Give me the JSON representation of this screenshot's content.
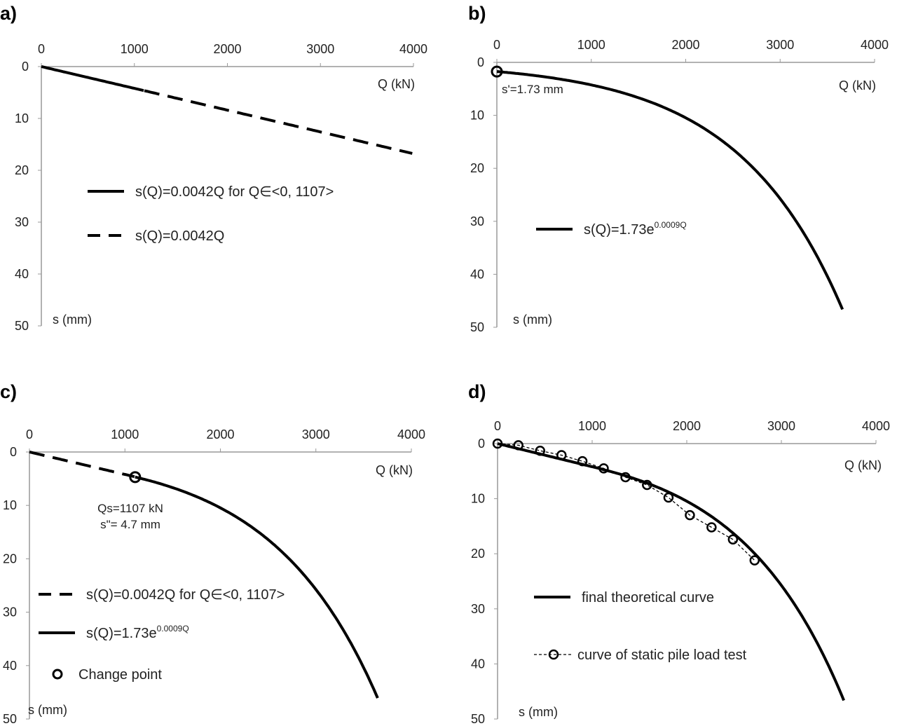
{
  "chart_data": [
    {
      "panel": "a)",
      "type": "line",
      "xlabel": "Q (kN)",
      "ylabel": "s (mm)",
      "xlim": [
        0,
        4000
      ],
      "ylim": [
        0,
        50
      ],
      "y_inverted": true,
      "x_axis_position": "top",
      "xticks": [
        "0",
        "1000",
        "2000",
        "3000",
        "4000"
      ],
      "yticks": [
        "0",
        "10",
        "20",
        "30",
        "40",
        "50"
      ],
      "grid": false,
      "series": [
        {
          "name": "s(Q)=0.0042Q for Q∈<0, 1107>",
          "style": "solid",
          "formula": {
            "kind": "linear",
            "k": 0.0042
          },
          "q_range": [
            0,
            1107
          ]
        },
        {
          "name": "s(Q)=0.0042Q",
          "style": "dashed",
          "formula": {
            "kind": "linear",
            "k": 0.0042
          },
          "q_range": [
            1107,
            4000
          ]
        }
      ]
    },
    {
      "panel": "b)",
      "type": "line",
      "xlabel": "Q (kN)",
      "ylabel": "s (mm)",
      "xlim": [
        0,
        4000
      ],
      "ylim": [
        0,
        50
      ],
      "y_inverted": true,
      "x_axis_position": "top",
      "xticks": [
        "0",
        "1000",
        "2000",
        "3000",
        "4000"
      ],
      "yticks": [
        "0",
        "10",
        "20",
        "30",
        "40",
        "50"
      ],
      "grid": false,
      "annotation": "s'=1.73 mm",
      "marker_point": {
        "x": 0,
        "y": 1.73
      },
      "series": [
        {
          "name": "s(Q)=1.73e",
          "name_sup": "0.0009Q",
          "style": "solid",
          "formula": {
            "kind": "exp",
            "a": 1.73,
            "b": 0.0009
          },
          "q_range": [
            0,
            3660
          ]
        }
      ]
    },
    {
      "panel": "c)",
      "type": "line",
      "xlabel": "Q (kN)",
      "ylabel": "s (mm)",
      "xlim": [
        0,
        4000
      ],
      "ylim": [
        0,
        50
      ],
      "y_inverted": true,
      "x_axis_position": "top",
      "xticks": [
        "0",
        "1000",
        "2000",
        "3000",
        "4000"
      ],
      "yticks": [
        "0",
        "10",
        "20",
        "30",
        "40",
        "50"
      ],
      "grid": false,
      "annotation_lines": [
        "Qs=1107 kN",
        "s\"= 4.7 mm"
      ],
      "marker_point": {
        "x": 1107,
        "y": 4.7
      },
      "series": [
        {
          "name": "s(Q)=0.0042Q for Q∈<0, 1107>",
          "style": "dashed",
          "formula": {
            "kind": "linear",
            "k": 0.0042
          },
          "q_range": [
            0,
            1107
          ]
        },
        {
          "name": "s(Q)=1.73e",
          "name_sup": "0.0009Q",
          "style": "solid",
          "formula": {
            "kind": "exp",
            "a": 1.73,
            "b": 0.0009
          },
          "q_range": [
            1107,
            3660
          ]
        },
        {
          "name": "Change point",
          "style": "marker"
        }
      ]
    },
    {
      "panel": "d)",
      "type": "line",
      "xlabel": "Q (kN)",
      "ylabel": "s (mm)",
      "xlim": [
        0,
        4000
      ],
      "ylim": [
        0,
        50
      ],
      "y_inverted": true,
      "x_axis_position": "top",
      "xticks": [
        "0",
        "1000",
        "2000",
        "3000",
        "4000"
      ],
      "yticks": [
        "0",
        "10",
        "20",
        "30",
        "40",
        "50"
      ],
      "grid": false,
      "series": [
        {
          "name": "final theoretical curve",
          "style": "solid",
          "formula": {
            "kind": "piecewise",
            "k": 0.0042,
            "qs": 1107,
            "a": 1.73,
            "b": 0.0009
          },
          "q_range": [
            0,
            3660
          ]
        },
        {
          "name": "curve of static pile load test",
          "style": "dashed-marker",
          "x": [
            0,
            220,
            450,
            676,
            897,
            1122,
            1352,
            1580,
            1807,
            2033,
            2262,
            2488,
            2717
          ],
          "y": [
            0,
            0.3,
            1.3,
            2.1,
            3.2,
            4.5,
            6.1,
            7.5,
            9.8,
            13.0,
            15.2,
            17.4,
            21.2
          ]
        }
      ]
    }
  ]
}
